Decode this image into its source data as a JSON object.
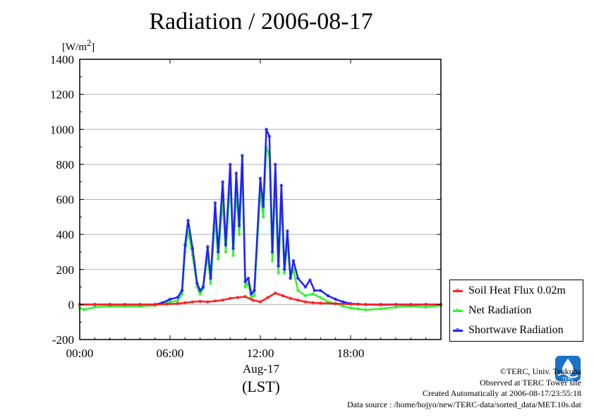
{
  "page": {
    "title": "Radiation / 2006-08-17",
    "y_unit_html": "[W/m<sup>2</sup>]",
    "date_label": "Aug-17",
    "time_label": "(LST)"
  },
  "legend": {
    "items": [
      {
        "label": "Soil Heat Flux 0.02m",
        "color": "#ff2020"
      },
      {
        "label": "Net Radiation",
        "color": "#30f030"
      },
      {
        "label": "Shortwave Radiation",
        "color": "#2020ff"
      }
    ]
  },
  "credits": {
    "line1": "©TERC, Univ. Tsukuba",
    "line2": "Observed at TERC Tower site",
    "line3": "Created Automatically at 2006-08-17/23:55:18",
    "line4": "Data source : /home/hojyo/new/TERC-data/sorted_data/MET.10s.dat"
  },
  "logo": {
    "text": "TERC",
    "icon": "terc-logo-icon"
  },
  "chart_data": {
    "type": "line",
    "title": "Radiation / 2006-08-17",
    "xlabel": "(LST)",
    "ylabel": "[W/m2]",
    "xlim": [
      0,
      24
    ],
    "ylim": [
      -200,
      1400
    ],
    "yticks": [
      -200,
      0,
      200,
      400,
      600,
      800,
      1000,
      1200,
      1400
    ],
    "xtick_labels": [
      "00:00",
      "06:00",
      "12:00",
      "18:00"
    ],
    "xticks": [
      0,
      6,
      12,
      18
    ],
    "grid": true,
    "legend_position": "right",
    "series": [
      {
        "name": "Soil Heat Flux 0.02m",
        "color": "#ff2020",
        "x": [
          0,
          3,
          5,
          5.8,
          6.5,
          7,
          7.5,
          8,
          8.5,
          9,
          9.5,
          10,
          10.5,
          11,
          11.5,
          12,
          12.5,
          13,
          13.5,
          14,
          14.5,
          15,
          15.5,
          16,
          17,
          18,
          19,
          20,
          22,
          24
        ],
        "y": [
          0,
          0,
          0,
          2,
          5,
          10,
          15,
          18,
          15,
          20,
          25,
          35,
          40,
          45,
          25,
          15,
          40,
          65,
          50,
          35,
          25,
          15,
          10,
          8,
          5,
          2,
          0,
          -2,
          -2,
          0
        ]
      },
      {
        "name": "Net Radiation",
        "color": "#30f030",
        "x": [
          0,
          0.3,
          1,
          2,
          3,
          4,
          5,
          5.5,
          6,
          6.5,
          6.8,
          7,
          7.2,
          7.5,
          7.8,
          8,
          8.2,
          8.5,
          8.7,
          9,
          9.2,
          9.5,
          9.7,
          10,
          10.2,
          10.4,
          10.6,
          10.8,
          11,
          11.2,
          11.4,
          11.6,
          12,
          12.2,
          12.4,
          12.6,
          12.8,
          13,
          13.2,
          13.4,
          13.6,
          13.8,
          14,
          14.2,
          14.5,
          15,
          15.5,
          16,
          16.5,
          17,
          17.5,
          18,
          18.5,
          19,
          20,
          21,
          22,
          23,
          24
        ],
        "y": [
          -20,
          -30,
          -15,
          -10,
          -10,
          -10,
          -5,
          5,
          15,
          20,
          60,
          300,
          420,
          280,
          100,
          60,
          90,
          280,
          120,
          500,
          260,
          600,
          300,
          700,
          280,
          650,
          400,
          780,
          100,
          120,
          40,
          50,
          650,
          500,
          900,
          850,
          250,
          700,
          180,
          600,
          180,
          350,
          150,
          200,
          80,
          50,
          60,
          40,
          15,
          5,
          -10,
          -20,
          -25,
          -30,
          -25,
          -15,
          -10,
          -15,
          -5
        ]
      },
      {
        "name": "Shortwave Radiation",
        "color": "#2020ff",
        "x": [
          0,
          1,
          2,
          3,
          4,
          5,
          5.5,
          6,
          6.5,
          6.8,
          7,
          7.2,
          7.5,
          7.8,
          8,
          8.2,
          8.5,
          8.7,
          9,
          9.2,
          9.5,
          9.7,
          10,
          10.2,
          10.4,
          10.6,
          10.8,
          11,
          11.2,
          11.4,
          11.6,
          12,
          12.2,
          12.4,
          12.6,
          12.8,
          13,
          13.2,
          13.4,
          13.6,
          13.8,
          14,
          14.2,
          14.5,
          15,
          15.3,
          15.6,
          16,
          16.5,
          17,
          17.5,
          18,
          18.5,
          19,
          20,
          21,
          22,
          23,
          24
        ],
        "y": [
          0,
          0,
          0,
          0,
          0,
          0,
          10,
          30,
          40,
          80,
          340,
          480,
          320,
          120,
          80,
          100,
          330,
          150,
          580,
          300,
          700,
          340,
          800,
          320,
          750,
          450,
          850,
          130,
          150,
          60,
          80,
          720,
          560,
          1000,
          960,
          300,
          800,
          220,
          680,
          200,
          420,
          150,
          250,
          150,
          100,
          140,
          80,
          80,
          50,
          30,
          15,
          5,
          2,
          0,
          0,
          0,
          0,
          0,
          0
        ]
      }
    ]
  }
}
